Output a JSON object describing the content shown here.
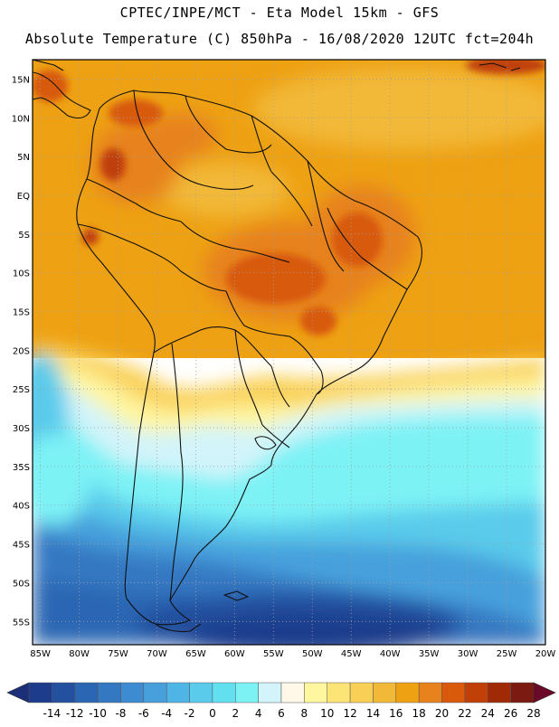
{
  "header": {
    "line1": "CPTEC/INPE/MCT  -   Eta Model 15km  -  GFS",
    "line2": "Absolute Temperature (C) 850hPa  -  16/08/2020 12UTC fct=204h"
  },
  "map": {
    "lat_labels": [
      "15N",
      "10N",
      "5N",
      "EQ",
      "5S",
      "10S",
      "15S",
      "20S",
      "25S",
      "30S",
      "35S",
      "40S",
      "45S",
      "50S",
      "55S"
    ],
    "lat_values": [
      15,
      10,
      5,
      0,
      -5,
      -10,
      -15,
      -20,
      -25,
      -30,
      -35,
      -40,
      -45,
      -50,
      -55
    ],
    "lon_labels": [
      "85W",
      "80W",
      "75W",
      "70W",
      "65W",
      "60W",
      "55W",
      "50W",
      "45W",
      "40W",
      "35W",
      "30W",
      "25W",
      "20W"
    ],
    "lon_values": [
      -85,
      -80,
      -75,
      -70,
      -65,
      -60,
      -55,
      -50,
      -45,
      -40,
      -35,
      -30,
      -25,
      -20
    ],
    "lat_range": [
      -58,
      17.5
    ],
    "lon_range": [
      -86,
      -20
    ]
  },
  "colorbar": {
    "labels": [
      "-14",
      "-12",
      "-10",
      "-8",
      "-6",
      "-4",
      "-2",
      "0",
      "2",
      "4",
      "6",
      "8",
      "10",
      "12",
      "14",
      "16",
      "18",
      "20",
      "22",
      "24",
      "26",
      "28"
    ],
    "colors": [
      "#1e3c8c",
      "#23509f",
      "#2a66b3",
      "#3478c2",
      "#3d8bd0",
      "#47a0dc",
      "#4fb4e6",
      "#5acbeb",
      "#62e0ef",
      "#7df2f5",
      "#d2f4fa",
      "#fff8e8",
      "#fff6a0",
      "#fde477",
      "#f9d055",
      "#f2b837",
      "#eea113",
      "#e7821c",
      "#d85a0a",
      "#c04008",
      "#a02a06",
      "#7a1a10"
    ],
    "low_arrow_color": "#1a2f78",
    "high_arrow_color": "#6a0a28"
  }
}
